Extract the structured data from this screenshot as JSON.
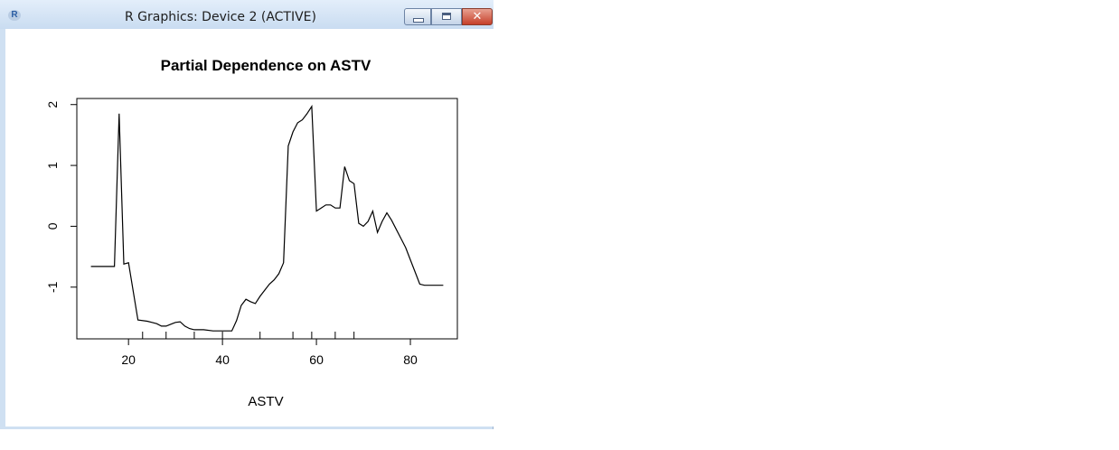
{
  "window": {
    "title": "R Graphics: Device 2 (ACTIVE)",
    "icon": "r-logo-icon",
    "icon_letter": "R",
    "controls": [
      "minimize-icon",
      "maximize-icon",
      "close-icon"
    ],
    "close_glyph": "✕"
  },
  "chart_data": {
    "type": "line",
    "title": "Partial Dependence on ASTV",
    "xlabel": "ASTV",
    "ylabel": "",
    "xlim": [
      9,
      90
    ],
    "ylim": [
      -1.85,
      2.1
    ],
    "xticks": [
      20,
      40,
      60,
      80
    ],
    "yticks": [
      -1,
      0,
      1,
      2
    ],
    "rug": [
      23,
      28,
      34,
      40,
      48,
      55,
      59,
      64,
      68
    ],
    "color": "#000000",
    "x": [
      12,
      16,
      17,
      18,
      19,
      20,
      22,
      24,
      25,
      26,
      27,
      28,
      29,
      30,
      31,
      32,
      33,
      34,
      36,
      38,
      40,
      41,
      42,
      43,
      44,
      45,
      46,
      47,
      48,
      49,
      50,
      51,
      52,
      53,
      54,
      55,
      56,
      57,
      58,
      59,
      60,
      61,
      62,
      63,
      64,
      65,
      66,
      67,
      68,
      69,
      70,
      71,
      72,
      73,
      74,
      75,
      76,
      77,
      78,
      79,
      80,
      81,
      82,
      83,
      84,
      85,
      86,
      87
    ],
    "y": [
      -0.66,
      -0.66,
      -0.66,
      1.85,
      -0.62,
      -0.6,
      -1.54,
      -1.56,
      -1.58,
      -1.6,
      -1.64,
      -1.64,
      -1.61,
      -1.58,
      -1.57,
      -1.64,
      -1.68,
      -1.7,
      -1.7,
      -1.72,
      -1.72,
      -1.72,
      -1.72,
      -1.55,
      -1.3,
      -1.2,
      -1.24,
      -1.27,
      -1.15,
      -1.05,
      -0.95,
      -0.88,
      -0.78,
      -0.6,
      1.32,
      1.55,
      1.7,
      1.75,
      1.85,
      1.97,
      0.25,
      0.3,
      0.35,
      0.35,
      0.3,
      0.3,
      0.98,
      0.75,
      0.7,
      0.05,
      0.0,
      0.08,
      0.25,
      -0.1,
      0.08,
      0.22,
      0.1,
      -0.05,
      -0.2,
      -0.35,
      -0.55,
      -0.75,
      -0.95,
      -0.97,
      -0.97,
      -0.97,
      -0.97,
      -0.97
    ]
  }
}
